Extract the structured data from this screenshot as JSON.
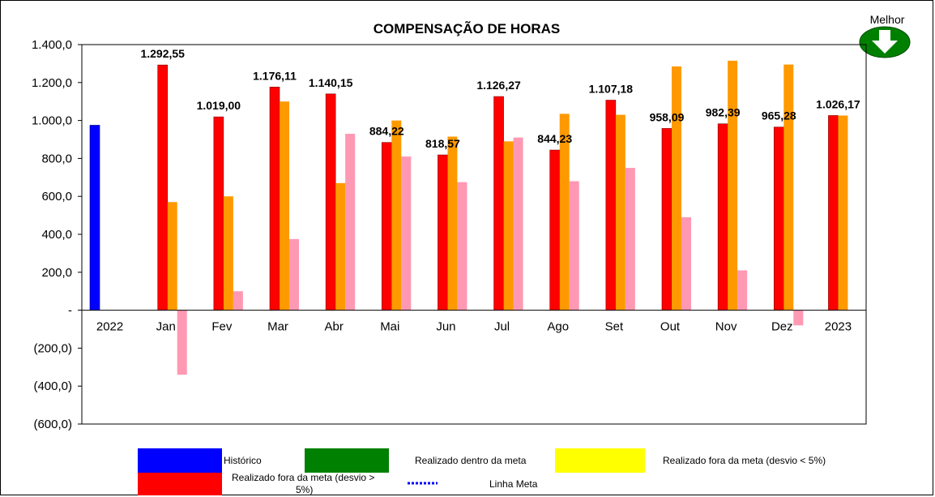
{
  "chart_data": {
    "type": "bar",
    "title": "COMPENSAÇÃO DE HORAS",
    "categories": [
      "2022",
      "Jan",
      "Fev",
      "Mar",
      "Abr",
      "Mai",
      "Jun",
      "Jul",
      "Ago",
      "Set",
      "Out",
      "Nov",
      "Dez",
      "2023"
    ],
    "ylim": [
      -600,
      1400
    ],
    "yticks": [
      1400,
      1200,
      1000,
      800,
      600,
      400,
      200,
      0,
      -200,
      -400,
      -600
    ],
    "ytick_labels": [
      "1.400,0",
      "1.200,0",
      "1.000,0",
      "800,0",
      "600,0",
      "400,0",
      "200,0",
      "-",
      "(200,0)",
      "(400,0)",
      "(600,0)"
    ],
    "series": [
      {
        "name": "Histórico",
        "color": "#0000ff",
        "values": [
          975,
          null,
          null,
          null,
          null,
          null,
          null,
          null,
          null,
          null,
          null,
          null,
          null,
          null
        ]
      },
      {
        "name": "Realizado fora da meta (desvio > 5%)",
        "color": "#ff0000",
        "values": [
          null,
          1292.55,
          1019.0,
          1176.11,
          1140.15,
          884.22,
          818.57,
          1126.27,
          844.23,
          1107.18,
          958.09,
          982.39,
          965.28,
          1026.17
        ],
        "labels": [
          null,
          "1.292,55",
          "1.019,00",
          "1.176,11",
          "1.140,15",
          "884,22",
          "818,57",
          "1.126,27",
          "844,23",
          "1.107,18",
          "958,09",
          "982,39",
          "965,28",
          "1.026,17"
        ]
      },
      {
        "color": "#ff9900",
        "values": [
          null,
          570,
          600,
          1100,
          670,
          1000,
          915,
          890,
          1035,
          1030,
          1285,
          1315,
          1295,
          1026
        ]
      },
      {
        "color": "#ff99b3",
        "values": [
          null,
          -340,
          100,
          375,
          930,
          810,
          675,
          910,
          680,
          750,
          490,
          210,
          -80,
          null
        ]
      }
    ],
    "legend": [
      {
        "label": "Histórico",
        "color": "#0000ff",
        "kind": "box"
      },
      {
        "label": "Realizado dentro da meta",
        "color": "#008000",
        "kind": "box"
      },
      {
        "label": "Realizado fora da meta (desvio < 5%)",
        "color": "#ffff00",
        "kind": "box"
      },
      {
        "label_line1": "Realizado fora da meta (desvio >",
        "label_line2": "5%)",
        "color": "#ff0000",
        "kind": "box"
      },
      {
        "label": "Linha Meta",
        "color": "#0000ff",
        "kind": "dotted-line"
      }
    ],
    "indicator": {
      "label": "Melhor",
      "direction": "down",
      "color": "#008000"
    },
    "legend_position": "bottom",
    "grid": false
  }
}
